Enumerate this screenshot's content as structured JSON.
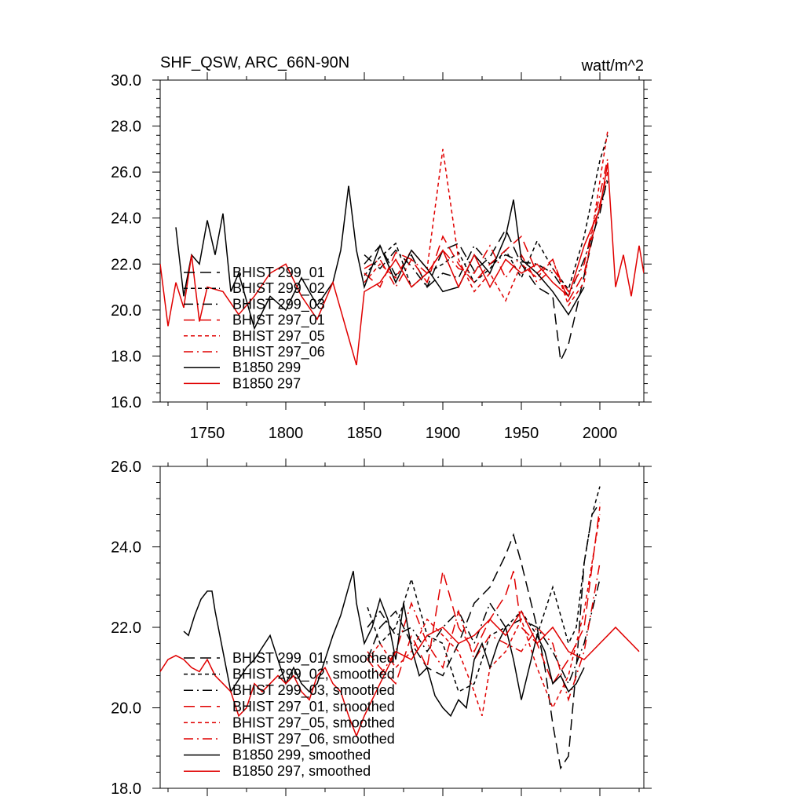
{
  "chart_data": [
    {
      "type": "line",
      "title_left": "SHF_QSW, ARC_66N-90N",
      "title_right": "watt/m^2",
      "xlim": [
        1720,
        2028
      ],
      "ylim": [
        16,
        30
      ],
      "x_ticks": [
        1750,
        1800,
        1850,
        1900,
        1950,
        2000
      ],
      "x_tick_labels": [
        "1750",
        "1800",
        "1850",
        "1900",
        "1950",
        "2000"
      ],
      "y_ticks": [
        16,
        18,
        20,
        22,
        24,
        26,
        28,
        30
      ],
      "y_tick_labels": [
        "16.0",
        "18.0",
        "20.0",
        "22.0",
        "24.0",
        "26.0",
        "28.0",
        "30.0"
      ],
      "legend_position": "bottom-left",
      "series": [
        {
          "name": "BHIST 299_01",
          "color": "#000000",
          "dash": "long-dash",
          "x": [
            1850,
            1860,
            1870,
            1880,
            1890,
            1900,
            1910,
            1920,
            1930,
            1940,
            1950,
            1960,
            1970,
            1975,
            1980,
            1990,
            2000,
            2005
          ],
          "y": [
            22.0,
            22.8,
            21.5,
            22.4,
            21.0,
            22.6,
            22.9,
            21.7,
            22.3,
            23.5,
            22.0,
            21.0,
            20.6,
            17.8,
            18.5,
            21.5,
            24.5,
            25.6
          ]
        },
        {
          "name": "BHIST 299_02",
          "color": "#000000",
          "dash": "short-dash",
          "x": [
            1850,
            1860,
            1870,
            1880,
            1890,
            1900,
            1910,
            1920,
            1930,
            1940,
            1950,
            1960,
            1970,
            1980,
            1990,
            2000,
            2005
          ],
          "y": [
            21.5,
            22.3,
            22.9,
            21.0,
            21.6,
            22.0,
            22.5,
            21.2,
            21.8,
            22.6,
            21.4,
            23.0,
            21.8,
            20.9,
            23.2,
            26.5,
            27.6
          ]
        },
        {
          "name": "BHIST 299_03",
          "color": "#000000",
          "dash": "dash-dot",
          "x": [
            1850,
            1860,
            1870,
            1880,
            1890,
            1900,
            1910,
            1920,
            1930,
            1940,
            1950,
            1960,
            1970,
            1980,
            1990,
            2000,
            2005
          ],
          "y": [
            22.4,
            21.8,
            22.6,
            21.9,
            21.0,
            21.6,
            21.4,
            22.8,
            22.0,
            22.4,
            22.1,
            22.0,
            21.6,
            20.6,
            22.2,
            24.2,
            25.8
          ]
        },
        {
          "name": "BHIST 297_01",
          "color": "#e00000",
          "dash": "long-dash",
          "x": [
            1850,
            1860,
            1870,
            1880,
            1890,
            1900,
            1910,
            1920,
            1930,
            1940,
            1950,
            1960,
            1970,
            1980,
            1990,
            2000,
            2005
          ],
          "y": [
            21.6,
            21.0,
            22.5,
            22.2,
            21.2,
            23.2,
            22.0,
            21.2,
            22.0,
            22.6,
            23.2,
            21.6,
            22.2,
            20.4,
            21.6,
            24.6,
            26.0
          ]
        },
        {
          "name": "BHIST 297_05",
          "color": "#e00000",
          "dash": "short-dash",
          "x": [
            1850,
            1860,
            1870,
            1880,
            1890,
            1900,
            1910,
            1920,
            1930,
            1940,
            1950,
            1960,
            1970,
            1980,
            1990,
            2000,
            2005
          ],
          "y": [
            21.2,
            22.0,
            21.4,
            22.6,
            21.8,
            27.0,
            22.2,
            20.8,
            21.6,
            20.4,
            22.0,
            21.4,
            22.2,
            20.2,
            21.2,
            25.6,
            27.8
          ]
        },
        {
          "name": "BHIST 297_06",
          "color": "#e00000",
          "dash": "dash-dot",
          "x": [
            1850,
            1860,
            1870,
            1880,
            1890,
            1900,
            1910,
            1920,
            1930,
            1940,
            1950,
            1960,
            1970,
            1980,
            1990,
            2000,
            2005
          ],
          "y": [
            21.8,
            22.2,
            21.0,
            22.2,
            21.6,
            22.6,
            21.8,
            21.6,
            22.8,
            21.4,
            22.4,
            21.2,
            21.8,
            20.8,
            22.0,
            25.0,
            26.6
          ]
        },
        {
          "name": "B1850 299",
          "color": "#000000",
          "dash": "solid",
          "x": [
            1730,
            1735,
            1740,
            1745,
            1750,
            1755,
            1760,
            1765,
            1770,
            1775,
            1780,
            1790,
            1800,
            1810,
            1820,
            1830,
            1835,
            1840,
            1845,
            1850,
            1860,
            1870,
            1880,
            1890,
            1900,
            1910,
            1920,
            1930,
            1940,
            1945,
            1950,
            1960,
            1970,
            1980,
            1990
          ],
          "y": [
            23.6,
            20.6,
            22.4,
            22.0,
            23.9,
            22.4,
            24.2,
            20.8,
            21.6,
            20.4,
            19.2,
            20.6,
            20.0,
            21.4,
            20.2,
            21.2,
            22.6,
            25.4,
            22.6,
            21.0,
            22.8,
            21.2,
            22.6,
            21.8,
            20.8,
            21.0,
            22.4,
            21.6,
            23.2,
            24.8,
            22.2,
            21.6,
            20.8,
            19.8,
            21.0
          ]
        },
        {
          "name": "B1850 297",
          "color": "#e00000",
          "dash": "solid",
          "x": [
            1720,
            1725,
            1730,
            1735,
            1740,
            1745,
            1750,
            1760,
            1770,
            1780,
            1790,
            1800,
            1810,
            1820,
            1830,
            1840,
            1845,
            1850,
            1860,
            1870,
            1880,
            1890,
            1900,
            1910,
            1920,
            1930,
            1940,
            1950,
            1960,
            1970,
            1980,
            1990,
            2000,
            2005,
            2010,
            2015,
            2020,
            2025,
            2028
          ],
          "y": [
            22.0,
            19.3,
            21.2,
            20.1,
            22.4,
            19.5,
            21.0,
            20.8,
            19.8,
            20.6,
            21.6,
            22.0,
            20.6,
            19.6,
            21.2,
            18.8,
            17.6,
            20.8,
            21.2,
            22.2,
            21.0,
            21.6,
            22.6,
            21.0,
            22.4,
            21.0,
            22.2,
            21.6,
            22.0,
            21.2,
            20.6,
            22.8,
            24.4,
            26.4,
            21.0,
            22.4,
            20.6,
            22.8,
            21.6
          ]
        }
      ]
    },
    {
      "type": "line",
      "xlim": [
        1720,
        2028
      ],
      "ylim": [
        18,
        26
      ],
      "y_ticks": [
        18,
        20,
        22,
        24,
        26
      ],
      "y_tick_labels": [
        "18.0",
        "20.0",
        "22.0",
        "24.0",
        "26.0"
      ],
      "legend_position": "bottom-left",
      "series": [
        {
          "name": "BHIST 299_01, smoothed",
          "color": "#000000",
          "dash": "long-dash",
          "x": [
            1852,
            1860,
            1870,
            1880,
            1890,
            1900,
            1910,
            1920,
            1930,
            1940,
            1945,
            1950,
            1960,
            1965,
            1970,
            1975,
            1980,
            1985,
            1990,
            1995,
            2000
          ],
          "y": [
            21.2,
            22.0,
            22.4,
            21.6,
            21.0,
            20.8,
            21.6,
            22.6,
            23.0,
            23.8,
            24.3,
            23.6,
            22.0,
            21.0,
            19.6,
            18.5,
            18.8,
            21.0,
            23.6,
            24.8,
            25.1
          ]
        },
        {
          "name": "BHIST 299_02, smoothed",
          "color": "#000000",
          "dash": "short-dash",
          "x": [
            1852,
            1860,
            1870,
            1880,
            1890,
            1900,
            1910,
            1920,
            1930,
            1940,
            1950,
            1960,
            1970,
            1980,
            1985,
            1990,
            1995,
            2000
          ],
          "y": [
            22.5,
            21.6,
            22.0,
            23.2,
            21.8,
            21.6,
            20.4,
            20.6,
            21.8,
            22.0,
            22.4,
            21.8,
            23.0,
            21.6,
            22.0,
            23.6,
            24.8,
            25.5
          ]
        },
        {
          "name": "BHIST 299_03, smoothed",
          "color": "#000000",
          "dash": "dash-dot",
          "x": [
            1852,
            1860,
            1870,
            1880,
            1890,
            1900,
            1910,
            1920,
            1930,
            1940,
            1950,
            1960,
            1970,
            1980,
            1990,
            2000
          ],
          "y": [
            22.0,
            22.4,
            21.8,
            22.0,
            21.4,
            22.0,
            22.4,
            21.6,
            22.6,
            22.0,
            22.2,
            22.0,
            21.4,
            20.6,
            21.6,
            23.2
          ]
        },
        {
          "name": "BHIST 297_01, smoothed",
          "color": "#e00000",
          "dash": "long-dash",
          "x": [
            1852,
            1860,
            1870,
            1880,
            1890,
            1900,
            1910,
            1920,
            1930,
            1940,
            1945,
            1950,
            1960,
            1970,
            1980,
            1990,
            2000
          ],
          "y": [
            21.4,
            21.0,
            20.6,
            21.8,
            21.0,
            23.4,
            22.0,
            21.4,
            22.2,
            22.8,
            23.4,
            22.0,
            21.6,
            20.6,
            21.2,
            22.0,
            25.0
          ]
        },
        {
          "name": "BHIST 297_05, smoothed",
          "color": "#e00000",
          "dash": "short-dash",
          "x": [
            1852,
            1860,
            1870,
            1880,
            1890,
            1900,
            1910,
            1920,
            1925,
            1930,
            1940,
            1950,
            1960,
            1970,
            1980,
            1990,
            2000
          ],
          "y": [
            21.2,
            21.6,
            21.0,
            21.4,
            22.2,
            21.8,
            21.4,
            20.4,
            19.8,
            21.0,
            21.4,
            22.2,
            21.0,
            20.0,
            20.8,
            22.4,
            24.8
          ]
        },
        {
          "name": "BHIST 297_06, smoothed",
          "color": "#e00000",
          "dash": "dash-dot",
          "x": [
            1852,
            1860,
            1870,
            1880,
            1890,
            1900,
            1910,
            1920,
            1930,
            1940,
            1950,
            1960,
            1970,
            1980,
            1990,
            2000
          ],
          "y": [
            21.2,
            20.8,
            21.4,
            22.6,
            21.6,
            21.0,
            22.4,
            21.2,
            21.8,
            21.6,
            21.4,
            22.0,
            21.6,
            20.2,
            21.4,
            23.6
          ]
        },
        {
          "name": "B1850 299, smoothed",
          "color": "#000000",
          "dash": "solid",
          "x": [
            1735,
            1738,
            1742,
            1746,
            1750,
            1753,
            1755,
            1760,
            1765,
            1770,
            1775,
            1780,
            1785,
            1790,
            1795,
            1800,
            1805,
            1810,
            1815,
            1820,
            1825,
            1830,
            1835,
            1840,
            1843,
            1845,
            1850,
            1855,
            1860,
            1865,
            1870,
            1875,
            1880,
            1885,
            1890,
            1895,
            1900,
            1905,
            1910,
            1915,
            1920,
            1925,
            1930,
            1935,
            1940,
            1945,
            1950,
            1955,
            1960,
            1965,
            1970,
            1975,
            1980,
            1985,
            1990
          ],
          "y": [
            21.9,
            21.8,
            22.3,
            22.7,
            22.9,
            22.9,
            22.4,
            21.4,
            20.4,
            20.7,
            21.0,
            21.2,
            21.5,
            21.8,
            21.2,
            20.6,
            21.0,
            20.6,
            20.4,
            20.6,
            21.2,
            21.8,
            22.3,
            23.0,
            23.4,
            22.6,
            21.6,
            22.0,
            22.7,
            22.2,
            21.2,
            22.6,
            21.5,
            20.8,
            21.0,
            20.3,
            20.0,
            19.8,
            20.2,
            20.0,
            21.2,
            21.6,
            21.0,
            21.6,
            22.0,
            21.2,
            20.2,
            21.0,
            21.8,
            21.4,
            20.6,
            20.8,
            20.4,
            20.6,
            21.0
          ]
        },
        {
          "name": "B1850 297, smoothed",
          "color": "#e00000",
          "dash": "solid",
          "x": [
            1720,
            1725,
            1730,
            1735,
            1740,
            1745,
            1750,
            1755,
            1760,
            1765,
            1770,
            1775,
            1780,
            1785,
            1790,
            1795,
            1800,
            1805,
            1810,
            1815,
            1820,
            1825,
            1830,
            1835,
            1840,
            1845,
            1850,
            1860,
            1870,
            1880,
            1890,
            1900,
            1910,
            1920,
            1930,
            1940,
            1950,
            1960,
            1970,
            1980,
            1990,
            2000,
            2005,
            2010,
            2015,
            2020,
            2025
          ],
          "y": [
            20.9,
            21.2,
            21.3,
            21.2,
            21.0,
            20.9,
            21.2,
            20.8,
            20.6,
            20.4,
            19.8,
            20.0,
            20.6,
            20.4,
            20.6,
            20.8,
            20.6,
            20.8,
            20.4,
            20.2,
            20.8,
            21.0,
            20.6,
            20.4,
            19.8,
            19.3,
            19.8,
            20.6,
            21.4,
            21.2,
            21.8,
            22.0,
            21.6,
            21.8,
            22.2,
            21.8,
            22.4,
            21.6,
            22.0,
            21.4,
            21.2,
            21.6,
            21.8,
            22.0,
            21.8,
            21.6,
            21.4
          ]
        }
      ]
    }
  ]
}
